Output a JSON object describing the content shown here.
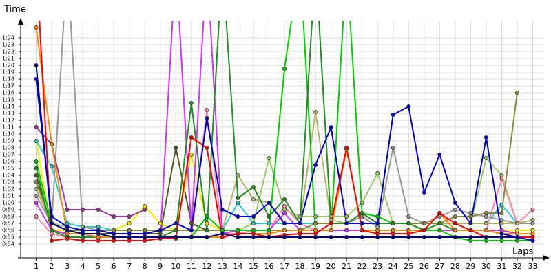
{
  "chart_data": {
    "type": "line",
    "y_label": "Time",
    "x_label": "Laps",
    "x": [
      1,
      2,
      3,
      4,
      5,
      6,
      7,
      8,
      9,
      10,
      11,
      12,
      13,
      14,
      15,
      16,
      17,
      18,
      19,
      20,
      21,
      22,
      23,
      24,
      25,
      26,
      27,
      28,
      29,
      30,
      31,
      32,
      33
    ],
    "xlim": [
      0,
      33.6
    ],
    "xticks": [
      1,
      2,
      3,
      4,
      5,
      6,
      7,
      8,
      9,
      10,
      11,
      12,
      13,
      14,
      15,
      16,
      17,
      18,
      19,
      20,
      21,
      22,
      23,
      24,
      25,
      26,
      27,
      28,
      29,
      30,
      31,
      32,
      33
    ],
    "ylim": [
      52,
      86.5
    ],
    "yticks": [
      {
        "value": 54,
        "label": "0:54"
      },
      {
        "value": 55,
        "label": "0:55"
      },
      {
        "value": 56,
        "label": "0:56"
      },
      {
        "value": 57,
        "label": "0:57"
      },
      {
        "value": 58,
        "label": "0:58"
      },
      {
        "value": 59,
        "label": "0:59"
      },
      {
        "value": 60,
        "label": "1:00"
      },
      {
        "value": 61,
        "label": "1:01"
      },
      {
        "value": 62,
        "label": "1:02"
      },
      {
        "value": 63,
        "label": "1:03"
      },
      {
        "value": 64,
        "label": "1:04"
      },
      {
        "value": 65,
        "label": "1:05"
      },
      {
        "value": 66,
        "label": "1:06"
      },
      {
        "value": 67,
        "label": "1:07"
      },
      {
        "value": 68,
        "label": "1:08"
      },
      {
        "value": 69,
        "label": "1:09"
      },
      {
        "value": 70,
        "label": "1:10"
      },
      {
        "value": 71,
        "label": "1:11"
      },
      {
        "value": 72,
        "label": "1:12"
      },
      {
        "value": 73,
        "label": "1:13"
      },
      {
        "value": 74,
        "label": "1:14"
      },
      {
        "value": 75,
        "label": "1:15"
      },
      {
        "value": 76,
        "label": "1:16"
      },
      {
        "value": 77,
        "label": "1:17"
      },
      {
        "value": 78,
        "label": "1:18"
      },
      {
        "value": 79,
        "label": "1:19"
      },
      {
        "value": 80,
        "label": "1:20"
      },
      {
        "value": 81,
        "label": "1:21"
      },
      {
        "value": 82,
        "label": "1:22"
      },
      {
        "value": 83,
        "label": "1:23"
      },
      {
        "value": 84,
        "label": "1:24"
      }
    ],
    "grid": true,
    "series": [
      {
        "color": "#99cc66",
        "values": [
          63,
          57,
          56,
          56,
          56,
          56,
          56,
          56,
          56,
          56,
          56,
          56,
          56,
          56,
          57,
          66.5,
          59,
          58,
          58,
          58,
          58,
          60,
          64.3,
          57,
          57,
          57,
          57,
          57,
          57,
          66.5,
          64,
          57,
          57
        ]
      },
      {
        "color": "#555522",
        "values": [
          64,
          56,
          55.5,
          55.5,
          55.5,
          55.5,
          55.5,
          55.5,
          55.5,
          68,
          57,
          56,
          56,
          56,
          56,
          56,
          56,
          56,
          56,
          56,
          56,
          56,
          56,
          56,
          56,
          56,
          56,
          56,
          56,
          56,
          56,
          56,
          56
        ]
      },
      {
        "color": "#eeee00",
        "values": [
          69,
          56,
          56,
          56,
          56,
          56,
          57,
          59.5,
          57,
          56,
          67,
          57,
          56,
          56,
          56,
          56,
          56,
          56,
          56,
          56,
          56,
          56,
          56,
          56,
          56,
          56,
          56,
          56,
          56,
          56,
          56,
          56,
          56
        ]
      },
      {
        "color": "#33cccc",
        "values": [
          69,
          65.3,
          57,
          56.5,
          56.5,
          56,
          56,
          56,
          56,
          56,
          56,
          56,
          56,
          60,
          57,
          57,
          57,
          57,
          57,
          57,
          57,
          57,
          57,
          57,
          57,
          57,
          57,
          57,
          57,
          57,
          59.7,
          57,
          57
        ]
      },
      {
        "color": "#ff88aa",
        "values": [
          58,
          55.5,
          55,
          55,
          55,
          55,
          55,
          55,
          55,
          55,
          55,
          73.5,
          55.5,
          55.5,
          56,
          56,
          59.5,
          57,
          56,
          56,
          56,
          56,
          56,
          56,
          56,
          56,
          56,
          56,
          56,
          56,
          63.5,
          57,
          59
        ]
      },
      {
        "color": "#999999",
        "values": [
          61,
          57,
          95,
          56.5,
          56,
          56,
          56,
          56,
          56,
          56,
          56,
          56,
          56,
          56,
          56,
          56,
          56,
          56,
          57,
          57,
          57,
          58,
          56.5,
          68,
          58,
          57,
          58,
          59,
          58.5,
          58,
          57.5,
          57,
          57
        ]
      },
      {
        "color": "#b5b56a",
        "values": [
          62,
          57,
          56.5,
          56,
          56,
          56,
          56,
          56,
          56,
          56,
          56,
          56,
          56,
          64,
          60.5,
          60,
          57,
          57,
          73.2,
          57.5,
          57,
          57,
          57,
          57,
          57,
          57,
          57,
          57,
          57,
          57,
          57,
          57,
          57.5
        ]
      },
      {
        "color": "#8b8b3a",
        "values": [
          63,
          57,
          56,
          56,
          56,
          56,
          56,
          56,
          56,
          56,
          56,
          56,
          56,
          56,
          56,
          56,
          56,
          56,
          57,
          57,
          57,
          57,
          57,
          57,
          57,
          57,
          57,
          58,
          58,
          58.5,
          58.5,
          76,
          null
        ]
      },
      {
        "color": "#cc33ff",
        "values": [
          60,
          56,
          55.5,
          55.5,
          55,
          55,
          55,
          55,
          55,
          95,
          56,
          95,
          55.5,
          56,
          56,
          56,
          58.5,
          56,
          56,
          56,
          56,
          56,
          56,
          56,
          56,
          56,
          56,
          56,
          56,
          56,
          56,
          55.5,
          55.5
        ]
      },
      {
        "color": "#00cc00",
        "values": [
          66,
          57,
          56,
          55.5,
          55.5,
          55,
          55,
          55,
          55,
          55,
          55,
          58,
          56,
          56,
          56,
          56,
          79.5,
          95,
          56,
          56,
          95,
          58.5,
          58,
          57,
          57,
          56,
          56,
          55,
          54.5,
          54.5,
          54.5,
          54.5,
          54.5
        ]
      },
      {
        "color": "#228b22",
        "values": [
          65,
          56,
          55,
          55,
          55,
          55,
          55,
          55,
          55,
          56,
          74.5,
          56,
          95,
          60.7,
          62.3,
          58,
          60.5,
          57,
          95,
          57,
          57,
          58.5,
          57,
          57,
          57,
          56,
          57,
          56,
          56,
          56,
          55.5,
          55.5,
          55.5
        ]
      },
      {
        "color": "#993399",
        "values": [
          71,
          68.5,
          59,
          59,
          59,
          58,
          58,
          59,
          null,
          null,
          null,
          null,
          null,
          null,
          null,
          null,
          null,
          null,
          null,
          null,
          null,
          null,
          null,
          null,
          null,
          null,
          null,
          null,
          null,
          null,
          null,
          null,
          null
        ]
      },
      {
        "color": "#ff8c00",
        "values": [
          85.5,
          68.5,
          55.5,
          55.5,
          55,
          55,
          55,
          55,
          55,
          55,
          55,
          55,
          55,
          55.5,
          55.5,
          55.5,
          56,
          56,
          56,
          56,
          67.8,
          56,
          56,
          56,
          56,
          56,
          58.5,
          56,
          56,
          56,
          55.5,
          55.5,
          55.5
        ]
      },
      {
        "color": "#ff0000",
        "values": [
          95,
          54.5,
          54.8,
          54.5,
          54.5,
          54.5,
          54.5,
          54.5,
          54.8,
          54.8,
          69.5,
          68,
          55,
          55.5,
          55.5,
          55,
          55.3,
          55.5,
          55.5,
          57,
          68,
          56,
          55.5,
          55.5,
          55.5,
          56,
          58.5,
          57,
          56,
          55,
          55,
          55,
          55
        ]
      },
      {
        "color": "#000080",
        "values": [
          80,
          57,
          56,
          55.5,
          55.5,
          55,
          55,
          55,
          55,
          55,
          55,
          55,
          55.5,
          55,
          55,
          55,
          55,
          55,
          55,
          55,
          55,
          55,
          55,
          55,
          55,
          55,
          55,
          55,
          55,
          55,
          55,
          55,
          54.5
        ]
      },
      {
        "color": "#0000cc",
        "values": [
          78,
          58,
          56.5,
          56,
          56,
          55.5,
          55.5,
          55.5,
          56,
          57,
          56,
          72.3,
          59,
          58,
          58,
          60,
          57,
          57,
          65.5,
          71,
          57,
          57,
          57,
          72.8,
          74,
          61.5,
          67,
          60,
          57,
          69.5,
          55.5,
          55,
          54.5
        ]
      }
    ]
  }
}
